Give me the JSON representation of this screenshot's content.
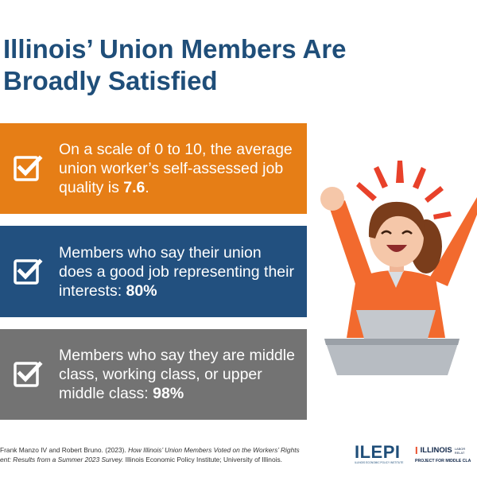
{
  "title": {
    "line1": "Illinois’ Union Members Are",
    "line2": "Broadly Satisfied"
  },
  "cards": [
    {
      "text": "On a scale of 0 to 10, the average union worker’s self-assessed job quality is ",
      "highlight": "7.6",
      "suffix": ".",
      "color": "#e67e16",
      "icon": "checkbox-check-icon"
    },
    {
      "text": "Members who say their union does a good job representing their interests: ",
      "highlight": "80%",
      "suffix": "",
      "color": "#22507f",
      "icon": "checkbox-check-icon"
    },
    {
      "text": "Members who say they are middle class, working class, or upper middle class: ",
      "highlight": "98%",
      "suffix": "",
      "color": "#737373",
      "icon": "checkbox-check-icon"
    }
  ],
  "citation": {
    "line1_start": "Frank Manzo IV and Robert Bruno. (2023). ",
    "line1_italic": "How Illinois’ Union Members Voted on the Workers’ Rights",
    "line2_italic": "ent: Results from a Summer 2023 Survey.",
    "line2_rest": " Illinois Economic Policy Institute; University of Illinois."
  },
  "logos": {
    "ilepi": {
      "word": "ILEPI",
      "subtitle": "ILLINOIS ECONOMIC POLICY INSTITUTE"
    },
    "illinois": {
      "mark": "I",
      "word": "ILLINOIS",
      "side1": "LABOR",
      "side2": "RELAT",
      "project": "PROJECT FOR MIDDLE CLA"
    }
  },
  "illustration": {
    "name": "celebrating-woman-at-laptop",
    "colors": {
      "shirt": "#f26a2e",
      "hair": "#7a3d1b",
      "skin": "#f5c7a9",
      "laptop": "#b7bcc2",
      "rays": "#e8412a"
    }
  }
}
